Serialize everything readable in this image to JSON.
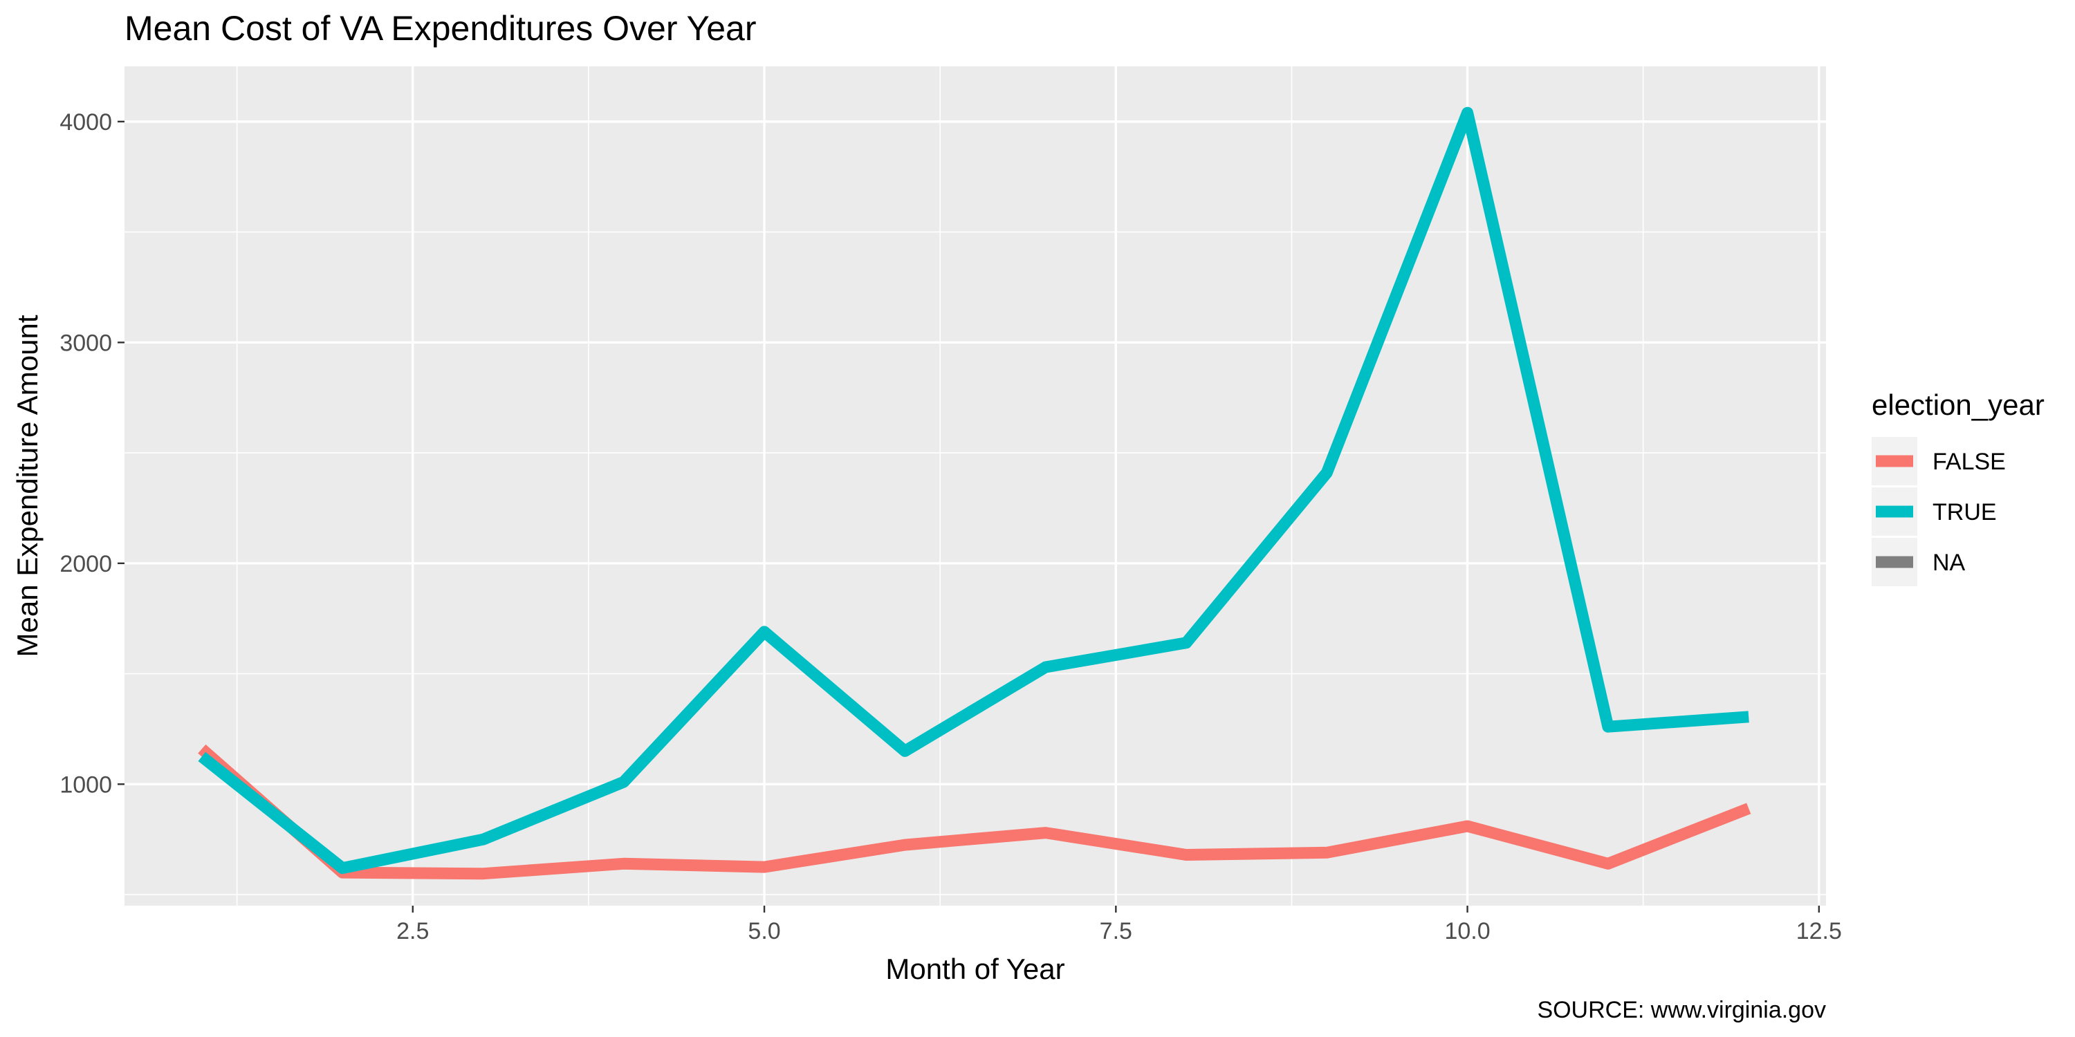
{
  "chart_data": {
    "type": "line",
    "title": "Mean Cost of VA Expenditures Over Year",
    "xlabel": "Month of Year",
    "ylabel": "Mean Expenditure Amount",
    "caption": "SOURCE: www.virginia.gov",
    "xlim": [
      0.45,
      12.55
    ],
    "ylim": [
      450,
      4250
    ],
    "x_ticks": [
      2.5,
      5.0,
      7.5,
      10.0,
      12.5
    ],
    "x_tick_labels": [
      "2.5",
      "5.0",
      "7.5",
      "10.0",
      "12.5"
    ],
    "y_ticks": [
      1000,
      2000,
      3000,
      4000
    ],
    "y_tick_labels": [
      "1000",
      "2000",
      "3000",
      "4000"
    ],
    "grid": true,
    "legend": {
      "title": "election_year",
      "position": "right",
      "entries": [
        {
          "label": "FALSE",
          "color": "#F8766D"
        },
        {
          "label": "TRUE",
          "color": "#00BFC4"
        },
        {
          "label": "NA",
          "color": "#7F7F7F"
        }
      ]
    },
    "x": [
      1,
      2,
      3,
      4,
      5,
      6,
      7,
      8,
      9,
      10,
      11,
      12
    ],
    "series": [
      {
        "name": "FALSE",
        "color": "#F8766D",
        "values": [
          1160,
          600,
          595,
          640,
          625,
          725,
          780,
          680,
          690,
          810,
          640,
          890
        ]
      },
      {
        "name": "TRUE",
        "color": "#00BFC4",
        "values": [
          1125,
          620,
          750,
          1010,
          1690,
          1150,
          1530,
          1640,
          2410,
          4040,
          1260,
          1305
        ]
      }
    ]
  }
}
